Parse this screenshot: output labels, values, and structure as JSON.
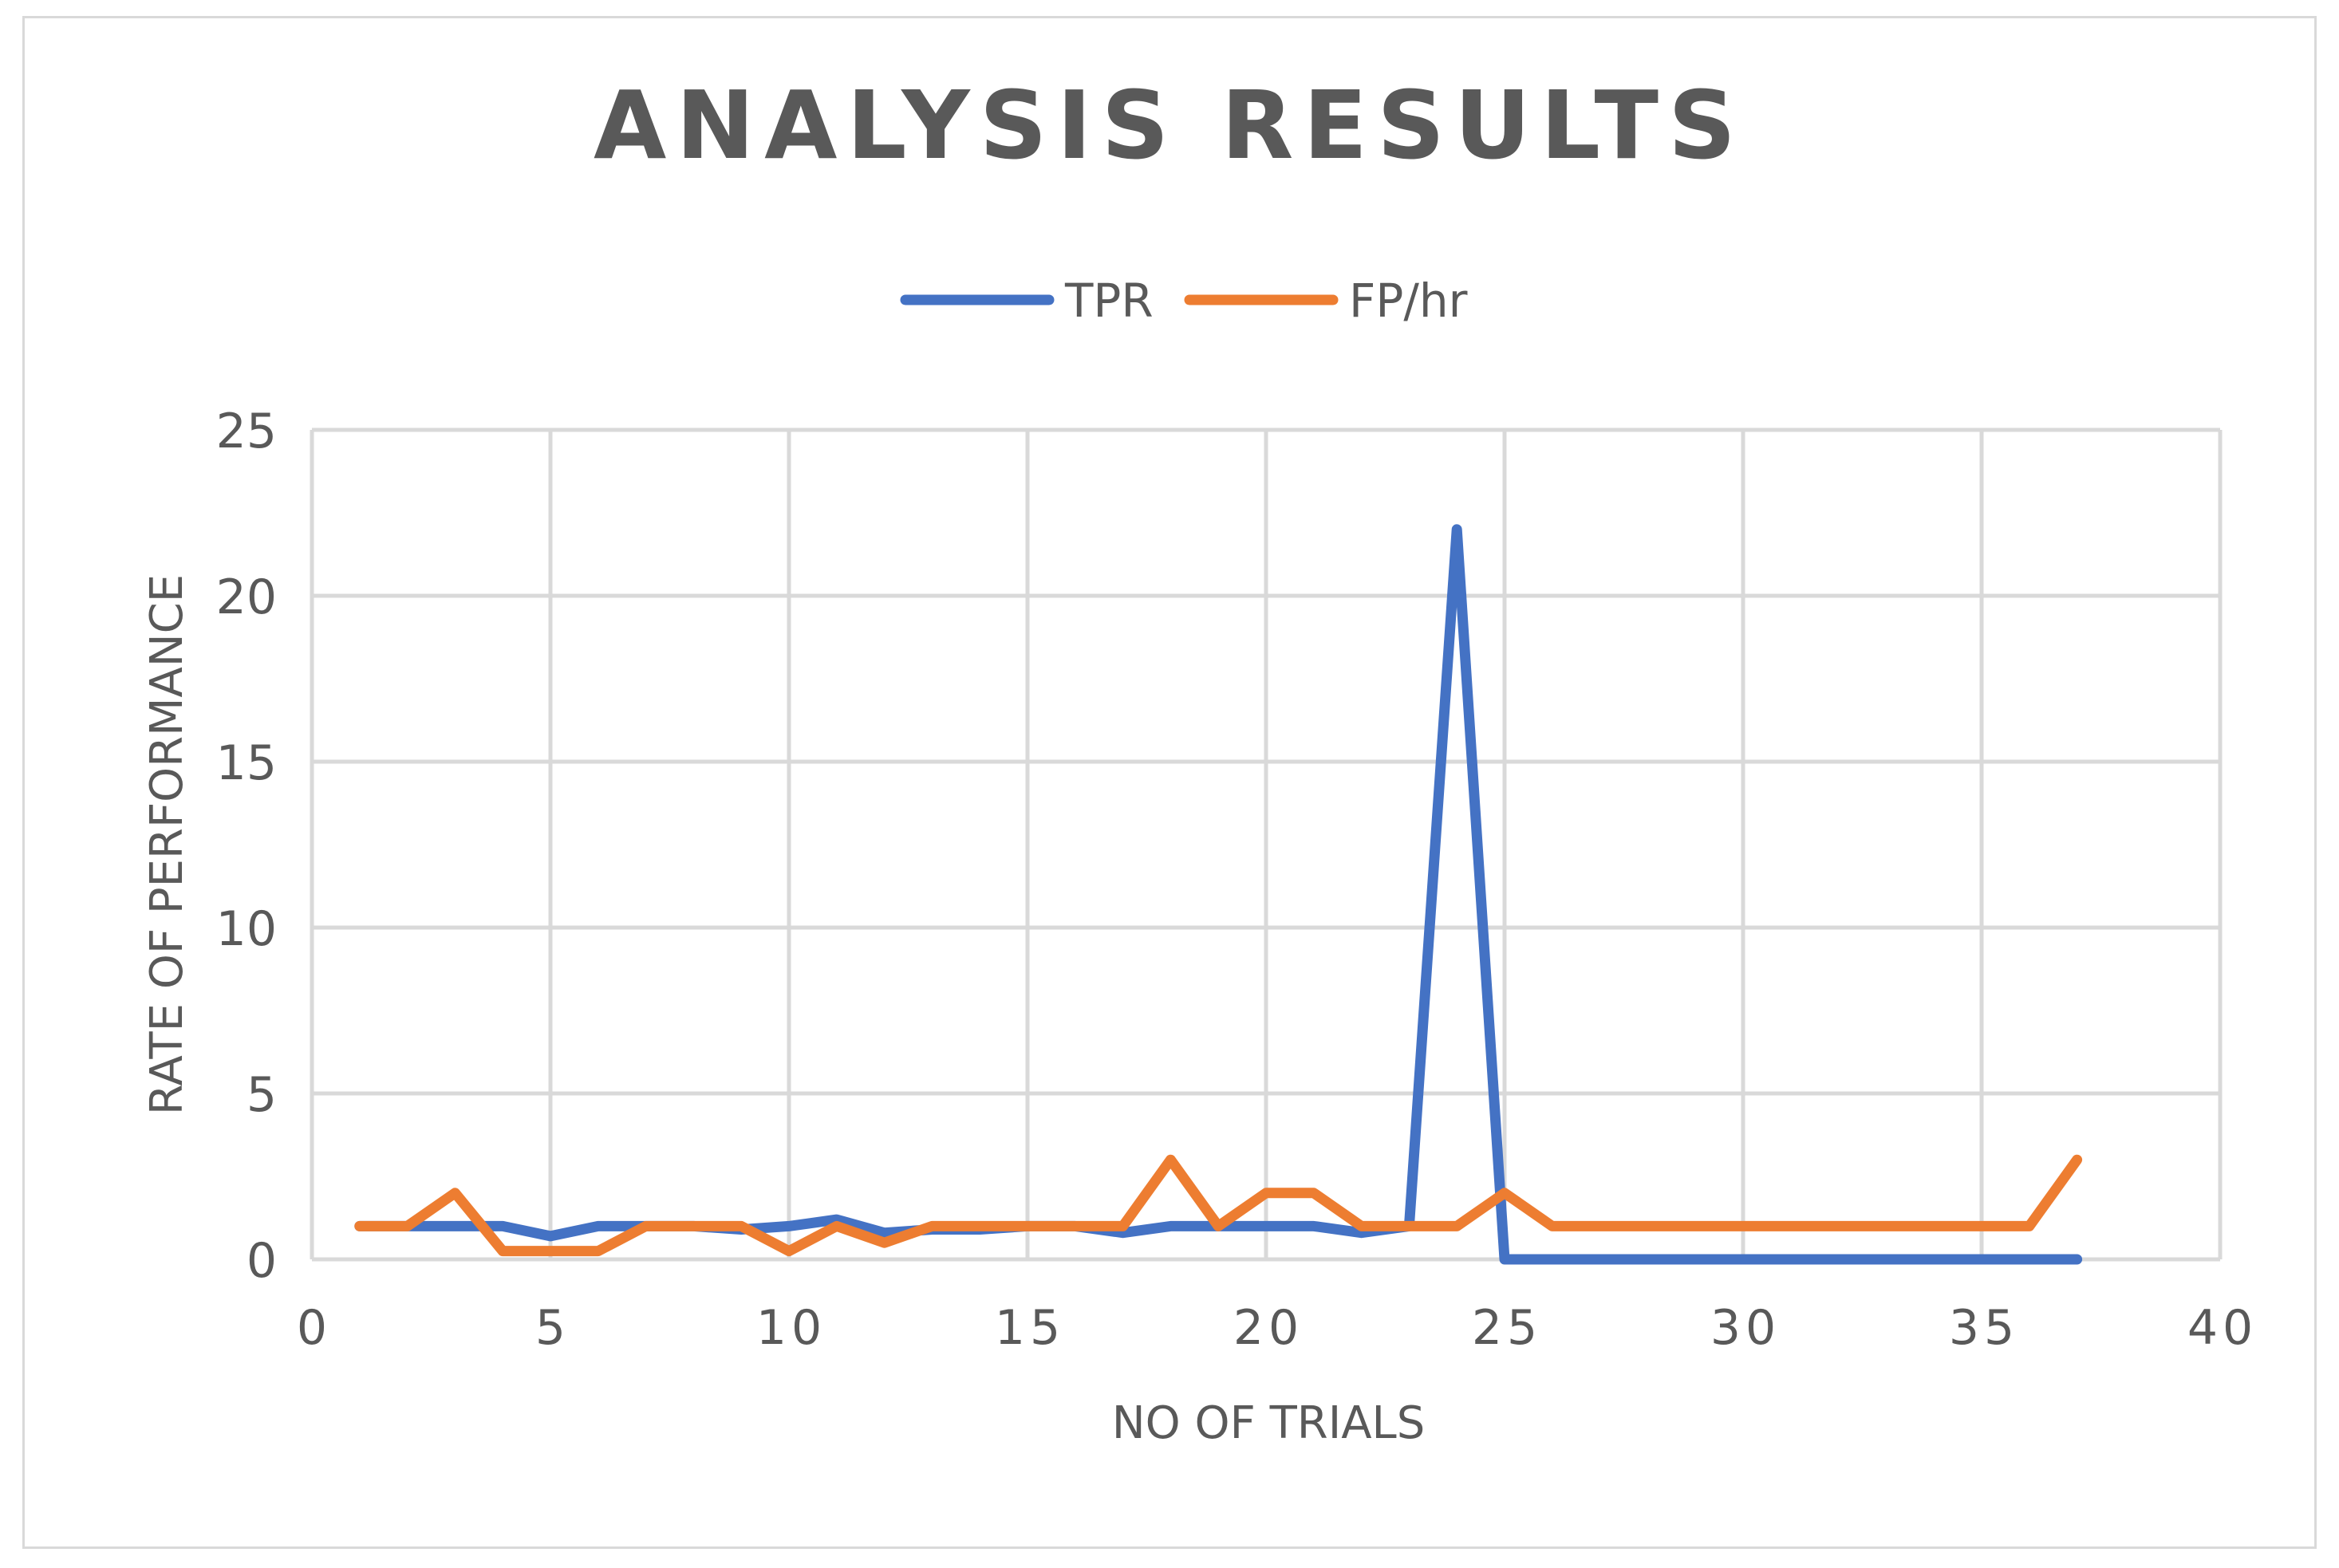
{
  "chart_data": {
    "type": "line",
    "title": "ANALYSIS RESULTS",
    "xlabel": "NO OF TRIALS",
    "ylabel": "RATE OF PERFORMANCE",
    "xlim": [
      0,
      40
    ],
    "ylim": [
      0,
      25
    ],
    "x_ticks": [
      0,
      5,
      10,
      15,
      20,
      25,
      30,
      35,
      40
    ],
    "y_ticks": [
      0,
      5,
      10,
      15,
      20,
      25
    ],
    "grid": true,
    "legend_position": "top",
    "x": [
      1,
      2,
      3,
      4,
      5,
      6,
      7,
      8,
      9,
      10,
      11,
      12,
      13,
      14,
      15,
      16,
      17,
      18,
      19,
      20,
      21,
      22,
      23,
      24,
      25,
      26,
      27,
      28,
      29,
      30,
      31,
      32,
      33,
      34,
      35,
      36,
      37
    ],
    "series": [
      {
        "name": "TPR",
        "color": "#4472c4",
        "values": [
          1,
          1,
          1,
          1,
          0.7,
          1,
          1,
          1,
          0.9,
          1,
          1.2,
          0.8,
          0.9,
          0.9,
          1,
          1,
          0.8,
          1,
          1,
          1,
          1,
          0.8,
          1,
          22,
          0,
          0,
          0,
          0,
          0,
          0,
          0,
          0,
          0,
          0,
          0,
          0,
          0
        ]
      },
      {
        "name": "FP/hr",
        "color": "#ed7d31",
        "values": [
          1,
          1,
          2,
          0.25,
          0.25,
          0.25,
          1,
          1,
          1,
          0.25,
          1,
          0.5,
          1,
          1,
          1,
          1,
          1,
          3,
          1,
          2,
          2,
          1,
          1,
          1,
          2,
          1,
          1,
          1,
          1,
          1,
          1,
          1,
          1,
          1,
          1,
          1,
          3
        ]
      }
    ]
  }
}
